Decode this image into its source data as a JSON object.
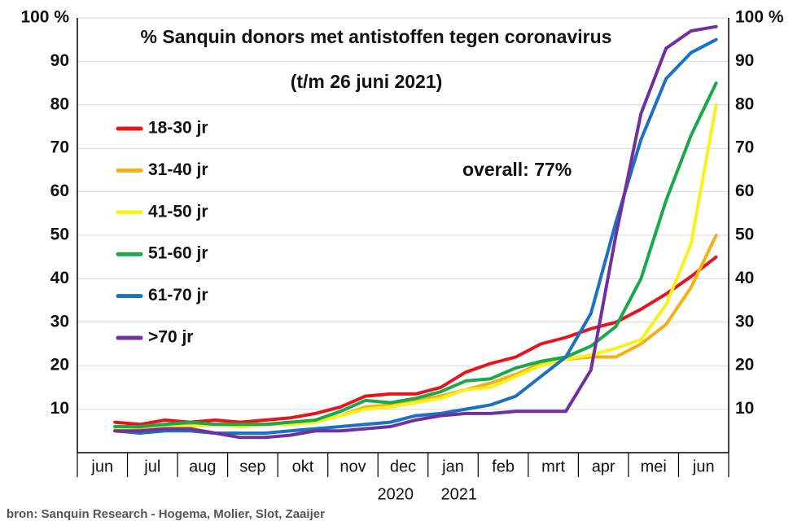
{
  "chart_data": {
    "type": "line",
    "title": "% Sanquin donors met antistoffen tegen coronavirus",
    "subtitle": "(t/m 26 juni 2021)",
    "annotation": "overall: 77%",
    "source": "bron: Sanquin Research - Hogema, Molier, Slot, Zaaijer",
    "year_labels": [
      "2020",
      "2021"
    ],
    "categories": [
      "jun",
      null,
      "jul",
      null,
      "aug",
      null,
      "sep",
      null,
      "okt",
      null,
      "nov",
      null,
      "dec",
      null,
      "jan",
      null,
      "feb",
      null,
      "mrt",
      null,
      "apr",
      null,
      "mei",
      null,
      "jun",
      null
    ],
    "ylim": [
      0,
      100
    ],
    "yticks": [
      10,
      20,
      30,
      40,
      50,
      60,
      70,
      80,
      90,
      {
        "value": 100,
        "label": "100 %"
      }
    ],
    "grid": true,
    "legend": "upper left",
    "series": [
      {
        "name": "18-30 jr",
        "color": "#e8141b",
        "values": [
          null,
          7,
          6.5,
          7.5,
          7,
          7.5,
          7,
          7.5,
          8,
          9,
          10.5,
          13,
          13.5,
          13.5,
          15,
          18.5,
          20.5,
          22,
          25,
          26.5,
          28.5,
          30,
          33,
          36.5,
          40.5,
          45
        ]
      },
      {
        "name": "31-40 jr",
        "color": "#f5b014",
        "values": [
          null,
          6,
          5.5,
          6.5,
          6.5,
          6.5,
          6.5,
          6.5,
          7,
          7,
          8.5,
          10.5,
          11,
          12,
          13,
          14.5,
          16,
          18,
          20.5,
          21.5,
          22,
          22,
          25,
          29.5,
          38,
          50
        ]
      },
      {
        "name": "41-50 jr",
        "color": "#f7f21c",
        "values": [
          null,
          5.5,
          5,
          6,
          6,
          6.5,
          6,
          6.5,
          6.5,
          7,
          8.5,
          10,
          10.5,
          11.5,
          12.5,
          14.5,
          15,
          17.5,
          20,
          21.5,
          22.5,
          24,
          26,
          34,
          48,
          80
        ]
      },
      {
        "name": "51-60 jr",
        "color": "#1aa84a",
        "values": [
          null,
          6,
          6,
          6.5,
          7,
          6.5,
          6.5,
          6.5,
          7,
          7.5,
          9.5,
          12,
          11.5,
          12.5,
          14,
          16.5,
          17,
          19.5,
          21,
          22,
          24.5,
          29,
          40,
          58,
          73,
          85
        ]
      },
      {
        "name": "61-70 jr",
        "color": "#1a72c0",
        "values": [
          null,
          5,
          4.5,
          5,
          5,
          4.5,
          4.5,
          4.5,
          5,
          5.5,
          6,
          6.5,
          7,
          8.5,
          9,
          10,
          11,
          13,
          17.5,
          22,
          32,
          53,
          72,
          86,
          92,
          95
        ]
      },
      {
        "name": ">70 jr",
        "color": "#7030a0",
        "values": [
          null,
          5,
          5,
          5.5,
          5.5,
          4.5,
          3.5,
          3.5,
          4,
          5,
          5,
          5.5,
          6,
          7.5,
          8.5,
          9,
          9,
          9.5,
          9.5,
          9.5,
          19,
          50,
          78,
          93,
          97,
          98
        ]
      }
    ]
  }
}
